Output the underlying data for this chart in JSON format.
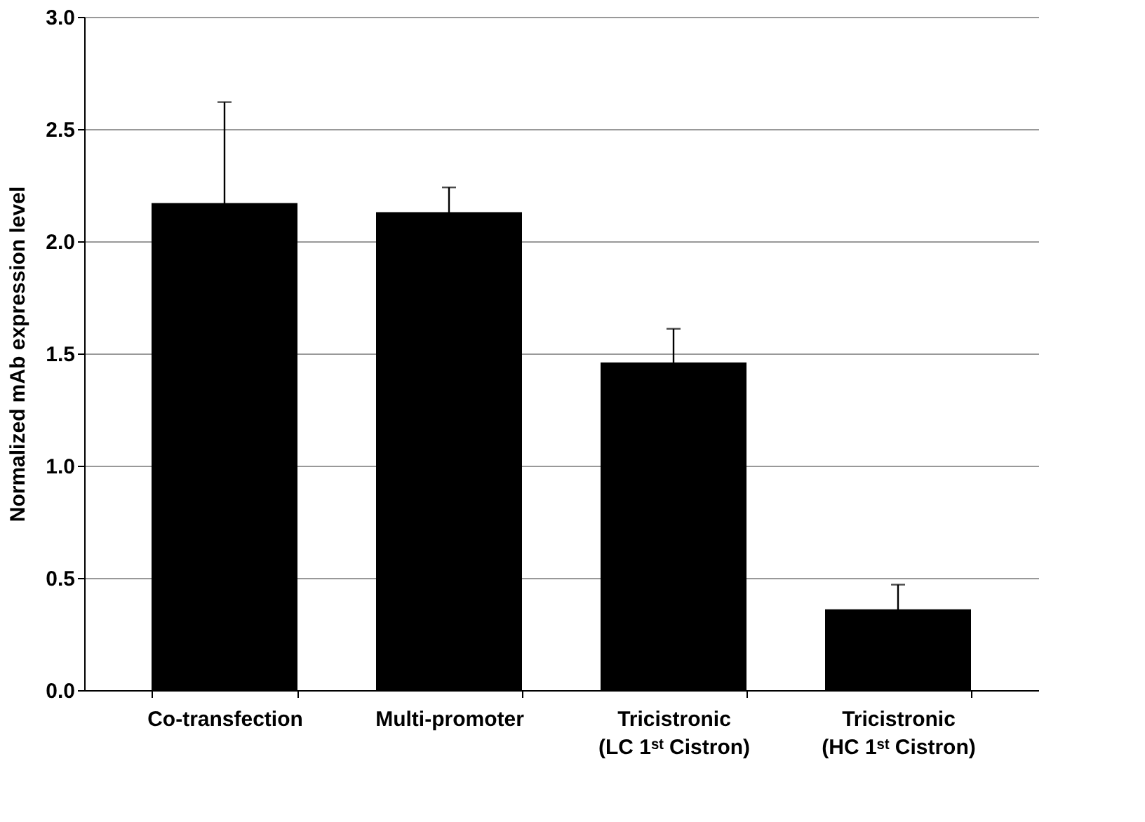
{
  "chart_data": {
    "type": "bar",
    "ylabel": "Normalized mAb expression level",
    "categories": [
      "Co-transfection",
      "Multi-promoter",
      "Tricistronic\n(LC 1ˢᵗ Cistron)",
      "Tricistronic\n(HC 1ˢᵗ Cistron)"
    ],
    "values": [
      2.17,
      2.13,
      1.46,
      0.36
    ],
    "errors": [
      0.45,
      0.11,
      0.15,
      0.11
    ],
    "color": "#000000",
    "ylim": [
      0,
      3
    ],
    "yticks": [
      {
        "value": 0,
        "label": "0.0"
      },
      {
        "value": 0.5,
        "label": "0.5"
      },
      {
        "value": 1,
        "label": "1.0"
      },
      {
        "value": 1.5,
        "label": "1.5"
      },
      {
        "value": 2,
        "label": "2.0"
      },
      {
        "value": 2.5,
        "label": "2.5"
      },
      {
        "value": 3,
        "label": "3.0"
      }
    ],
    "grid": "y"
  }
}
